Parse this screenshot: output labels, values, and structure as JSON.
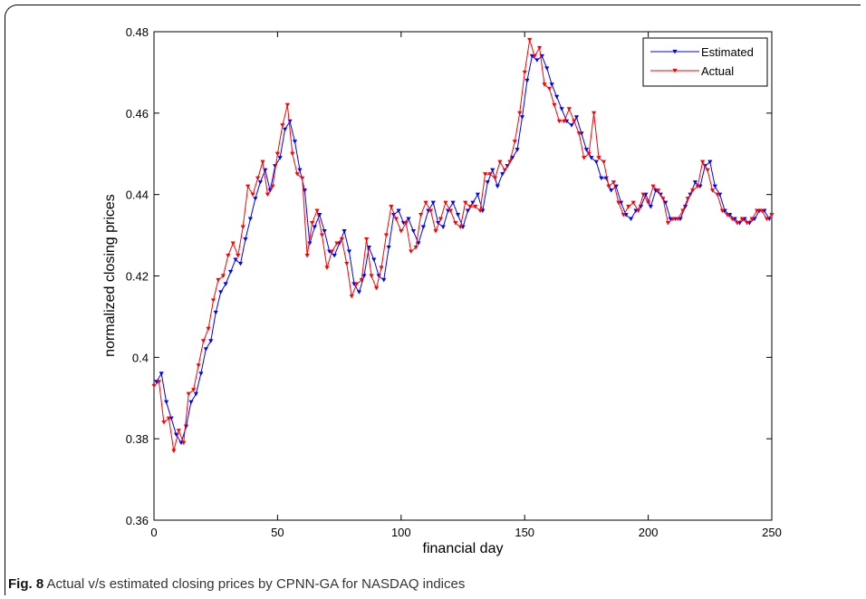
{
  "caption": {
    "label": "Fig. 8",
    "text": "Actual v/s estimated closing prices by CPNN-GA for NASDAQ indices"
  },
  "chart_data": {
    "type": "line",
    "title": "",
    "xlabel": "financial day",
    "ylabel": "normalized closing prices",
    "xlim": [
      0,
      250
    ],
    "ylim": [
      0.36,
      0.48
    ],
    "xticks": [
      0,
      50,
      100,
      150,
      200,
      250
    ],
    "yticks": [
      0.36,
      0.38,
      0.4,
      0.42,
      0.44,
      0.46,
      0.48
    ],
    "xtick_labels": [
      "0",
      "50",
      "100",
      "150",
      "200",
      "250"
    ],
    "ytick_labels": [
      "0.36",
      "0.38",
      "0.4",
      "0.42",
      "0.44",
      "0.46",
      "0.48"
    ],
    "grid": false,
    "legend": "top-right",
    "series": [
      {
        "name": "Estimated",
        "color": "#0000ff",
        "marker": "triangle-down",
        "x": [
          1,
          3,
          5,
          7,
          9,
          11,
          13,
          15,
          17,
          19,
          21,
          23,
          25,
          27,
          29,
          31,
          33,
          35,
          37,
          39,
          41,
          43,
          45,
          47,
          49,
          51,
          53,
          55,
          57,
          59,
          61,
          63,
          65,
          67,
          69,
          71,
          73,
          75,
          77,
          79,
          81,
          83,
          85,
          87,
          89,
          91,
          93,
          95,
          97,
          99,
          101,
          103,
          105,
          107,
          109,
          111,
          113,
          115,
          117,
          119,
          121,
          123,
          125,
          127,
          129,
          131,
          133,
          135,
          137,
          139,
          141,
          143,
          145,
          147,
          149,
          151,
          153,
          155,
          157,
          159,
          161,
          163,
          165,
          167,
          169,
          171,
          173,
          175,
          177,
          179,
          181,
          183,
          185,
          187,
          189,
          191,
          193,
          195,
          197,
          199,
          201,
          203,
          205,
          207,
          209,
          211,
          213,
          215,
          217,
          219,
          221,
          223,
          225,
          227,
          229,
          231,
          233,
          235,
          237,
          239,
          241,
          243,
          245,
          247,
          249
        ],
        "y": [
          0.394,
          0.396,
          0.389,
          0.385,
          0.381,
          0.379,
          0.383,
          0.389,
          0.391,
          0.396,
          0.402,
          0.404,
          0.411,
          0.416,
          0.418,
          0.421,
          0.424,
          0.423,
          0.429,
          0.434,
          0.439,
          0.443,
          0.446,
          0.441,
          0.447,
          0.449,
          0.456,
          0.458,
          0.453,
          0.446,
          0.441,
          0.428,
          0.432,
          0.435,
          0.431,
          0.426,
          0.425,
          0.428,
          0.431,
          0.426,
          0.418,
          0.416,
          0.42,
          0.427,
          0.424,
          0.42,
          0.419,
          0.427,
          0.435,
          0.436,
          0.433,
          0.434,
          0.431,
          0.428,
          0.432,
          0.436,
          0.438,
          0.433,
          0.432,
          0.436,
          0.438,
          0.435,
          0.432,
          0.436,
          0.438,
          0.44,
          0.436,
          0.443,
          0.446,
          0.442,
          0.445,
          0.447,
          0.449,
          0.451,
          0.459,
          0.468,
          0.474,
          0.473,
          0.474,
          0.471,
          0.467,
          0.464,
          0.461,
          0.458,
          0.457,
          0.459,
          0.455,
          0.451,
          0.449,
          0.448,
          0.444,
          0.444,
          0.441,
          0.442,
          0.438,
          0.435,
          0.434,
          0.436,
          0.437,
          0.44,
          0.437,
          0.441,
          0.44,
          0.438,
          0.434,
          0.434,
          0.434,
          0.437,
          0.44,
          0.443,
          0.442,
          0.447,
          0.448,
          0.442,
          0.44,
          0.436,
          0.435,
          0.434,
          0.433,
          0.434,
          0.433,
          0.434,
          0.436,
          0.436,
          0.434
        ]
      },
      {
        "name": "Actual",
        "color": "#ff0000",
        "marker": "triangle-down",
        "x": [
          0,
          2,
          4,
          6,
          8,
          10,
          12,
          14,
          16,
          18,
          20,
          22,
          24,
          26,
          28,
          30,
          32,
          34,
          36,
          38,
          40,
          42,
          44,
          46,
          48,
          50,
          52,
          54,
          56,
          58,
          60,
          62,
          64,
          66,
          68,
          70,
          72,
          74,
          76,
          78,
          80,
          82,
          84,
          86,
          88,
          90,
          92,
          94,
          96,
          98,
          100,
          102,
          104,
          106,
          108,
          110,
          112,
          114,
          116,
          118,
          120,
          122,
          124,
          126,
          128,
          130,
          132,
          134,
          136,
          138,
          140,
          142,
          144,
          146,
          148,
          150,
          152,
          154,
          156,
          158,
          160,
          162,
          164,
          166,
          168,
          170,
          172,
          174,
          176,
          178,
          180,
          182,
          184,
          186,
          188,
          190,
          192,
          194,
          196,
          198,
          200,
          202,
          204,
          206,
          208,
          210,
          212,
          214,
          216,
          218,
          220,
          222,
          224,
          226,
          228,
          230,
          232,
          234,
          236,
          238,
          240,
          242,
          244,
          246,
          248,
          250
        ],
        "y": [
          0.393,
          0.394,
          0.384,
          0.385,
          0.377,
          0.382,
          0.379,
          0.391,
          0.392,
          0.398,
          0.404,
          0.407,
          0.414,
          0.419,
          0.42,
          0.425,
          0.428,
          0.425,
          0.432,
          0.442,
          0.44,
          0.444,
          0.448,
          0.44,
          0.442,
          0.45,
          0.457,
          0.462,
          0.45,
          0.445,
          0.444,
          0.425,
          0.433,
          0.436,
          0.43,
          0.422,
          0.426,
          0.428,
          0.429,
          0.423,
          0.415,
          0.418,
          0.419,
          0.429,
          0.42,
          0.417,
          0.422,
          0.43,
          0.437,
          0.434,
          0.431,
          0.433,
          0.426,
          0.427,
          0.435,
          0.438,
          0.436,
          0.431,
          0.434,
          0.438,
          0.436,
          0.433,
          0.432,
          0.438,
          0.437,
          0.437,
          0.436,
          0.445,
          0.445,
          0.444,
          0.448,
          0.446,
          0.448,
          0.453,
          0.46,
          0.47,
          0.478,
          0.474,
          0.476,
          0.467,
          0.466,
          0.462,
          0.458,
          0.458,
          0.461,
          0.458,
          0.455,
          0.449,
          0.45,
          0.46,
          0.449,
          0.448,
          0.442,
          0.443,
          0.438,
          0.435,
          0.437,
          0.438,
          0.436,
          0.44,
          0.438,
          0.442,
          0.441,
          0.439,
          0.433,
          0.434,
          0.434,
          0.436,
          0.439,
          0.441,
          0.442,
          0.448,
          0.446,
          0.441,
          0.44,
          0.436,
          0.435,
          0.434,
          0.433,
          0.434,
          0.433,
          0.434,
          0.436,
          0.436,
          0.434,
          0.435
        ]
      }
    ]
  }
}
